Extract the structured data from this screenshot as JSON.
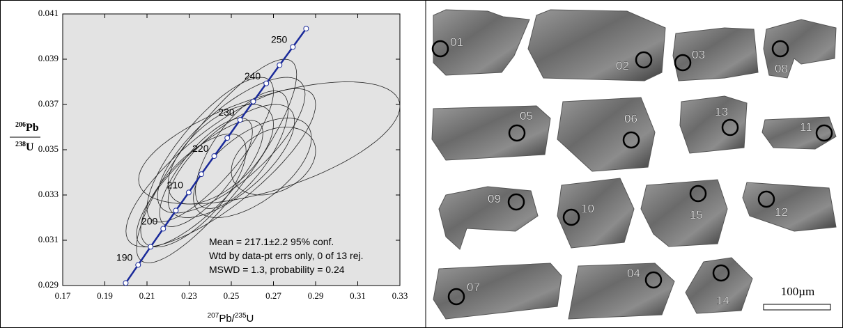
{
  "chart_data": {
    "type": "concordia",
    "xlabel": [
      "207",
      "Pb/",
      "235",
      "U"
    ],
    "ylabel": [
      "206",
      "Pb",
      "238",
      "U"
    ],
    "xlim": [
      0.17,
      0.33
    ],
    "ylim": [
      0.029,
      0.041
    ],
    "xticks": [
      0.17,
      0.19,
      0.21,
      0.23,
      0.25,
      0.27,
      0.29,
      0.31,
      0.33
    ],
    "yticks": [
      0.029,
      0.031,
      0.033,
      0.035,
      0.037,
      0.039,
      0.041
    ],
    "background": "#e3e3e3",
    "concordia": {
      "color": "#1a2a9a",
      "x": [
        0.1999,
        0.2058,
        0.2117,
        0.2177,
        0.2237,
        0.2298,
        0.2358,
        0.2419,
        0.2481,
        0.2542,
        0.2604,
        0.2666,
        0.2729,
        0.2792,
        0.2855
      ],
      "y": [
        0.02911,
        0.02991,
        0.03071,
        0.03151,
        0.03231,
        0.03311,
        0.03392,
        0.03472,
        0.03552,
        0.03632,
        0.03713,
        0.03793,
        0.03874,
        0.03954,
        0.04035
      ],
      "age_labels": [
        null,
        190,
        null,
        200,
        null,
        210,
        null,
        220,
        null,
        230,
        null,
        240,
        null,
        250,
        null
      ]
    },
    "ellipses": {
      "color": "#222222",
      "x": [
        0.268,
        0.245,
        0.243,
        0.25,
        0.235,
        0.245,
        0.26,
        0.238,
        0.255,
        0.27,
        0.24,
        0.25,
        0.232
      ],
      "y": [
        0.0353,
        0.0342,
        0.0345,
        0.0345,
        0.0335,
        0.0348,
        0.0342,
        0.034,
        0.035,
        0.0345,
        0.035,
        0.0352,
        0.0332
      ],
      "x_err": [
        0.062,
        0.045,
        0.038,
        0.03,
        0.03,
        0.025,
        0.028,
        0.022,
        0.022,
        0.02,
        0.03,
        0.035,
        0.025
      ],
      "y_err": [
        0.0027,
        0.0035,
        0.0045,
        0.0025,
        0.0028,
        0.0022,
        0.0022,
        0.0024,
        0.0026,
        0.0015,
        0.0032,
        0.003,
        0.0025
      ],
      "rho": [
        0.6,
        0.8,
        0.85,
        0.7,
        0.8,
        0.6,
        0.6,
        0.75,
        0.7,
        0.3,
        0.8,
        0.75,
        0.7
      ]
    },
    "annotations": [
      "Mean = 217.1±2.2  95% conf.",
      "Wtd by data-pt errs only, 0 of 13 rej.",
      "MSWD = 1.3, probability = 0.24"
    ]
  },
  "cl_image": {
    "grains": [
      "01",
      "02",
      "03",
      "08",
      "05",
      "06",
      "13",
      "11",
      "09",
      "10",
      "15",
      "12",
      "07",
      "04",
      "14"
    ],
    "scale_bar": "100µm"
  }
}
